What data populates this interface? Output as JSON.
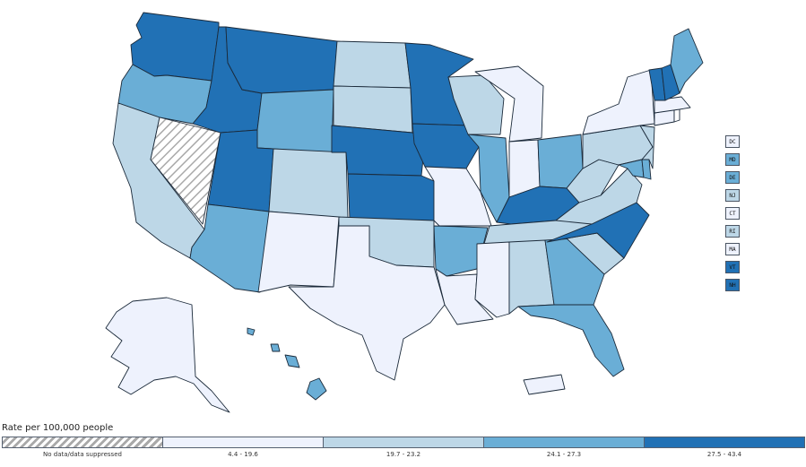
{
  "legend": {
    "title": "Rate per 100,000 people",
    "bins": [
      {
        "label": "No data/data suppressed",
        "class": "nodata"
      },
      {
        "label": "4.4 - 19.6",
        "class": "c1"
      },
      {
        "label": "19.7 - 23.2",
        "class": "c2"
      },
      {
        "label": "24.1 - 27.3",
        "class": "c3"
      },
      {
        "label": "27.5 - 43.4",
        "class": "c4"
      }
    ]
  },
  "colors": {
    "c1": "#eef2fd",
    "c2": "#bdd7e7",
    "c3": "#6aaed6",
    "c4": "#2171b5",
    "border": "#1b2a3a"
  },
  "small_states": [
    {
      "code": "DC",
      "class": "c1"
    },
    {
      "code": "MD",
      "class": "c3"
    },
    {
      "code": "DE",
      "class": "c3"
    },
    {
      "code": "NJ",
      "class": "c2"
    },
    {
      "code": "CT",
      "class": "c1"
    },
    {
      "code": "RI",
      "class": "c2"
    },
    {
      "code": "MA",
      "class": "c1"
    },
    {
      "code": "VT",
      "class": "c4"
    },
    {
      "code": "NH",
      "class": "c4"
    }
  ],
  "state_classes": {
    "WA": "c4",
    "OR": "c3",
    "CA": "c2",
    "NV": "nodata",
    "ID": "c4",
    "MT": "c4",
    "WY": "c3",
    "UT": "c4",
    "AZ": "c3",
    "CO": "c2",
    "NM": "c1",
    "ND": "c2",
    "SD": "c2",
    "NE": "c4",
    "KS": "c4",
    "OK": "c2",
    "TX": "c1",
    "MN": "c4",
    "IA": "c4",
    "MO": "c1",
    "AR": "c3",
    "LA": "c1",
    "WI": "c2",
    "IL": "c3",
    "MI": "c1",
    "IN": "c1",
    "OH": "c3",
    "KY": "c4",
    "TN": "c2",
    "MS": "c1",
    "AL": "c2",
    "GA": "c3",
    "FL": "c3",
    "SC": "c2",
    "NC": "c4",
    "VA": "c2",
    "WV": "c2",
    "PA": "c2",
    "NY": "c1",
    "ME": "c3",
    "VT": "c4",
    "NH": "c4",
    "MA": "c1",
    "CT": "c1",
    "NJ": "c2",
    "DE": "c3",
    "MD": "c3",
    "AK": "c1",
    "HI": "c3",
    "PR": "c1"
  }
}
